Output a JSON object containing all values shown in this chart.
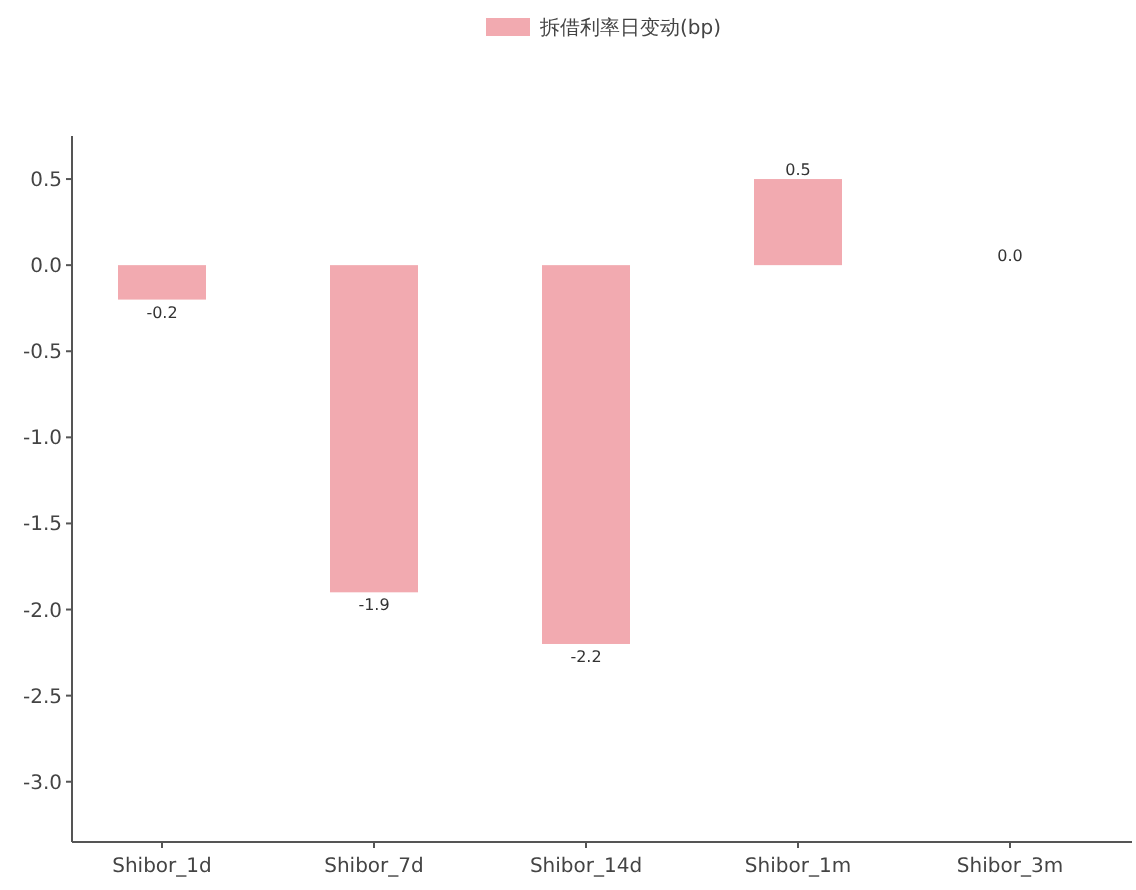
{
  "chart_data": {
    "type": "bar",
    "categories": [
      "Shibor_1d",
      "Shibor_7d",
      "Shibor_14d",
      "Shibor_1m",
      "Shibor_3m"
    ],
    "series": [
      {
        "name": "拆借利率日变动(bp)",
        "color": "#f2aab0",
        "values": [
          -0.2,
          -1.9,
          -2.2,
          0.5,
          0.0
        ],
        "value_labels": [
          "-0.2",
          "-1.9",
          "-2.2",
          "0.5",
          "0.0"
        ]
      }
    ],
    "ylim": [
      -3.35,
      0.75
    ],
    "yticks": [
      {
        "value": 0.5,
        "label": "0.5"
      },
      {
        "value": 0,
        "label": "0.0"
      },
      {
        "value": -0.5,
        "label": "-0.5"
      },
      {
        "value": -1,
        "label": "-1.0"
      },
      {
        "value": -1.5,
        "label": "-1.5"
      },
      {
        "value": -2,
        "label": "-2.0"
      },
      {
        "value": -2.5,
        "label": "-2.5"
      },
      {
        "value": -3,
        "label": "-3.0"
      }
    ],
    "legend": "top",
    "grid": false
  }
}
